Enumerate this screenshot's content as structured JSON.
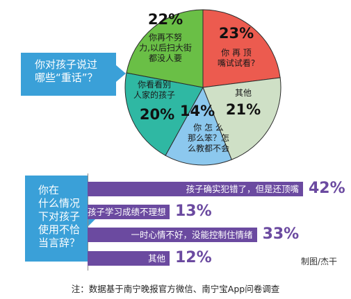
{
  "chart_data": [
    {
      "type": "pie",
      "title": "你对孩子说过哪些“重话”？",
      "slices": [
        {
          "label": "你再顶嘴试试看?",
          "value": 23,
          "display": "23%",
          "color": "#ec5b4f"
        },
        {
          "label": "其他",
          "value": 21,
          "display": "21%",
          "color": "#cfe0c6"
        },
        {
          "label": "你怎么那么笨？怎么教都不会",
          "value": 14,
          "display": "14%",
          "color": "#8cc8ee"
        },
        {
          "label": "你看看别人家的孩子",
          "value": 20,
          "display": "20%",
          "color": "#2fb8a3"
        },
        {
          "label": "你再不努力,以后扫大街都没人要",
          "value": 22,
          "display": "22%",
          "color": "#6abf46"
        }
      ]
    },
    {
      "type": "bar",
      "title": "你在什么情况下对孩子使用不恰当言辞？",
      "categories": [
        "孩子确实犯错了，但是还顶嘴",
        "孩子学习成绩不理想",
        "一时心情不好，没能控制住情绪",
        "其他"
      ],
      "values": [
        42,
        13,
        33,
        12
      ],
      "display": [
        "42%",
        "13%",
        "33%",
        "12%"
      ],
      "color": "#6b4aa0"
    }
  ],
  "pie_callout": {
    "line1": "你对孩子说过",
    "line2": "哪些“重话”？"
  },
  "bar_callout": {
    "lines": [
      "你在",
      "什么情况",
      "下对孩子",
      "使用不恰",
      "当言辞？"
    ]
  },
  "pie_label_lines": [
    [
      "你 再 顶",
      "嘴试试看?"
    ],
    [
      "其他"
    ],
    [
      "你 怎 么",
      "那么笨？怎",
      "么教都不会"
    ],
    [
      "你看看别",
      "人家的孩子"
    ],
    [
      "你再不努",
      "力,以后扫大街",
      "都没人要"
    ]
  ],
  "credit": "制图/杰干",
  "footnote": "注：数据基于南宁晚报官方微信、南宁宝App问卷调查"
}
